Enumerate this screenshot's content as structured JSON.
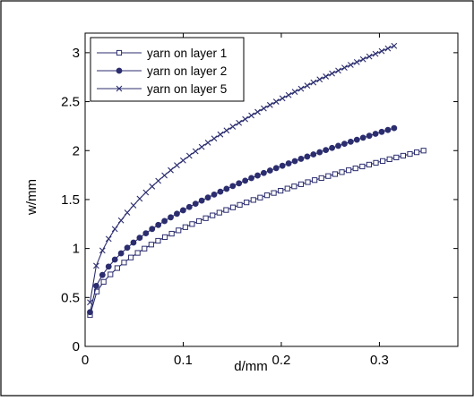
{
  "chart_data": {
    "type": "line",
    "xlabel": "d/mm",
    "ylabel": "w/mm",
    "xlim": [
      0,
      0.38
    ],
    "ylim": [
      0,
      3.2
    ],
    "xticks": [
      0,
      0.1,
      0.2,
      0.3
    ],
    "xtick_labels": [
      "0",
      "0.1",
      "0.2",
      "0.3"
    ],
    "yticks": [
      0,
      0.5,
      1,
      1.5,
      2,
      2.5,
      3
    ],
    "ytick_labels": [
      "0",
      "0.5",
      "1",
      "1.5",
      "2",
      "2.5",
      "3"
    ],
    "grid": false,
    "legend_position": "top-left",
    "series": [
      {
        "name": "yarn on layer 1",
        "marker": "square",
        "color": "#2b2d6e",
        "x_start": 0.005,
        "x_end": 0.345,
        "y_start": 0.32,
        "y_end": 2.0,
        "points": 50
      },
      {
        "name": "yarn on layer 2",
        "marker": "circle",
        "color": "#2b2d6e",
        "x_start": 0.005,
        "x_end": 0.315,
        "y_start": 0.35,
        "y_end": 2.23,
        "points": 50
      },
      {
        "name": "yarn on layer 5",
        "marker": "x",
        "color": "#2b2d6e",
        "x_start": 0.005,
        "x_end": 0.315,
        "y_start": 0.45,
        "y_end": 3.07,
        "points": 50
      }
    ]
  }
}
